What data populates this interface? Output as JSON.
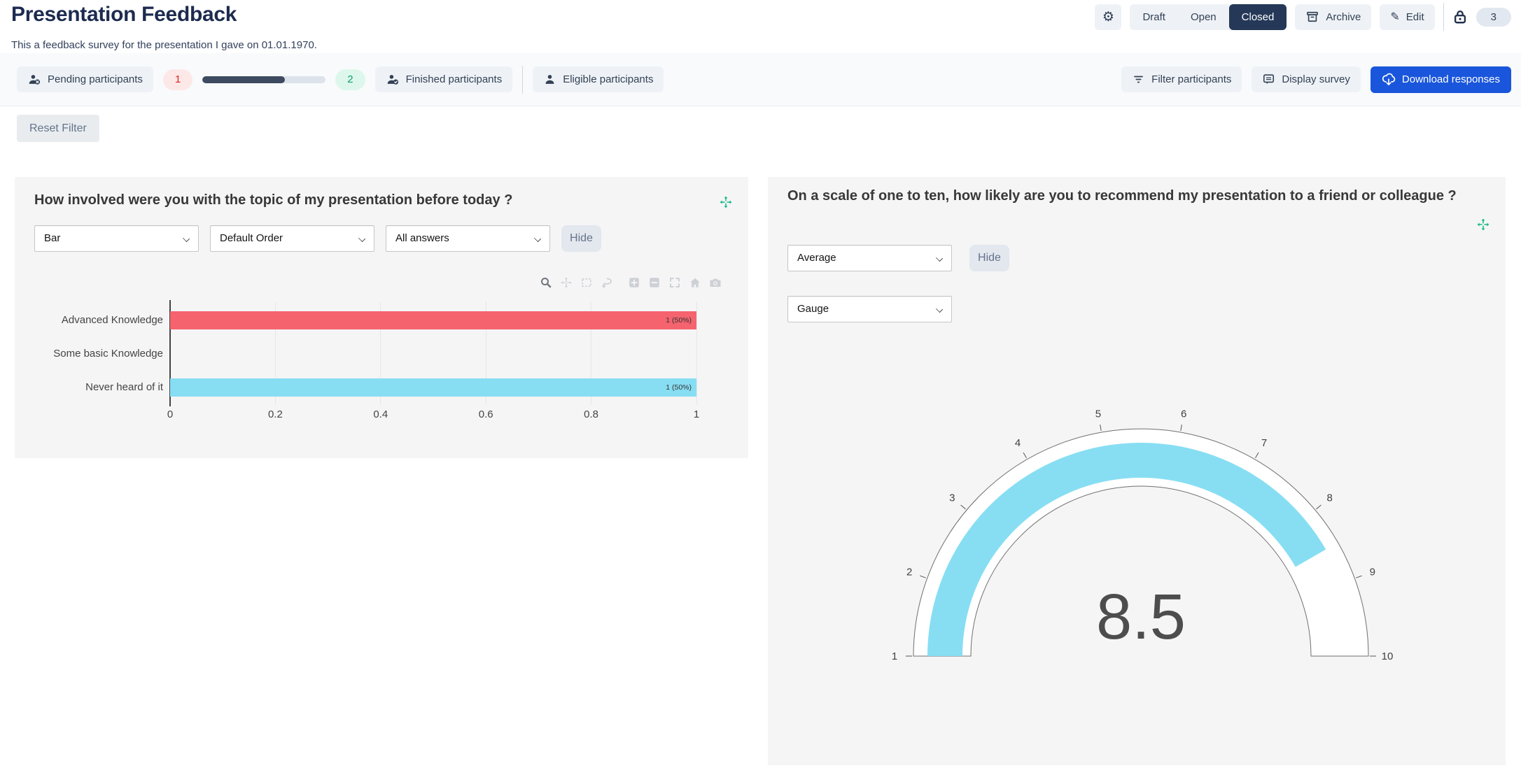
{
  "header": {
    "title": "Presentation Feedback",
    "subtitle": "This a feedback survey for the presentation I gave on 01.01.1970.",
    "status_tabs": {
      "draft": "Draft",
      "open": "Open",
      "closed": "Closed",
      "active_tab": "Closed"
    },
    "archive_label": "Archive",
    "edit_label": "Edit",
    "lock_badge_count": "3"
  },
  "toolbar": {
    "pending_label": "Pending participants",
    "pending_count": "1",
    "progress_percent": 66.7,
    "finished_count": "2",
    "finished_label": "Finished participants",
    "eligible_label": "Eligible participants",
    "filter_label": "Filter participants",
    "display_label": "Display survey",
    "download_label": "Download responses",
    "reset_filter_label": "Reset Filter"
  },
  "colors": {
    "navy_dark": "#1d2b4f",
    "navy": "#253858",
    "blue": "#1a56db",
    "teal": "#10b981",
    "red_pill_bg": "#fde8e8",
    "red_pill_text": "#e02424",
    "green_pill_bg": "#def7ec",
    "green_pill_text": "#0e9f6e",
    "progress_fill": "#3d4a5f",
    "panel_bg": "#f5f5f6"
  },
  "chart_data": [
    {
      "type": "bar",
      "orientation": "horizontal",
      "title": "How involved were you with the topic of my presentation before today ?",
      "controls": [
        "Bar",
        "Default Order",
        "All answers"
      ],
      "hide_label": "Hide",
      "modebar": [
        "zoom",
        "pan",
        "box-select",
        "lasso-select",
        "zoom-in",
        "zoom-out",
        "autoscale",
        "home",
        "camera"
      ],
      "categories": [
        "Advanced Knowledge",
        "Some basic Knowledge",
        "Never heard of it"
      ],
      "values": [
        1,
        0,
        1
      ],
      "bar_labels": [
        "1 (50%)",
        "",
        "1 (50%)"
      ],
      "bar_colors": [
        "#f4636e",
        "#87def3",
        "#87def3"
      ],
      "xlim": [
        0,
        1
      ],
      "x_ticks": [
        0,
        0.2,
        0.4,
        0.6,
        0.8,
        1
      ],
      "x_tick_labels": [
        "0",
        "0.2",
        "0.4",
        "0.6",
        "0.8",
        "1"
      ],
      "grid": true,
      "legend": false
    },
    {
      "type": "gauge",
      "title": "On a scale of one to ten, how likely are you to recommend my presentation to a friend or colleague ?",
      "controls": [
        "Average"
      ],
      "hide_label": "Hide",
      "chart_type_control": "Gauge",
      "value": 8.5,
      "value_label": "8.5",
      "min": 1,
      "max": 10,
      "ticks": [
        1,
        2,
        3,
        4,
        5,
        6,
        7,
        8,
        9,
        10
      ],
      "tick_labels": [
        "1",
        "2",
        "3",
        "4",
        "5",
        "6",
        "7",
        "8",
        "9",
        "10"
      ],
      "bar_color": "#87def3",
      "band_fill": "#ffffff",
      "band_outline": "#6f6f6f"
    }
  ]
}
